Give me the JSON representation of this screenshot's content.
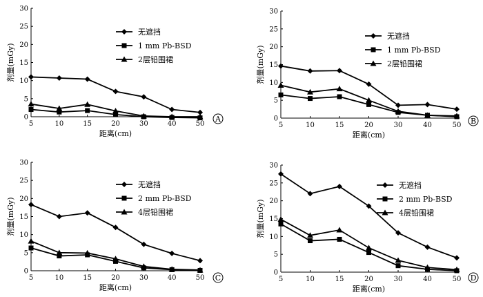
{
  "chart_data": [
    {
      "panel": "A",
      "type": "line",
      "xlabel": "距离(cm)",
      "ylabel": "剂量(mGy)",
      "ylim": [
        0,
        30
      ],
      "x_ticks": [
        "5",
        "10",
        "15",
        "20",
        "30",
        "40",
        "50"
      ],
      "y_ticks": [
        "0",
        "5",
        "10",
        "15",
        "20",
        "25",
        "30"
      ],
      "legend_position": "top-right",
      "series": [
        {
          "name": "无遮挡",
          "marker": "diamond",
          "values": [
            11.0,
            10.7,
            10.4,
            7.0,
            5.5,
            2.0,
            1.2
          ]
        },
        {
          "name": "1 mm Pb-BSD",
          "marker": "square",
          "values": [
            2.0,
            1.3,
            1.7,
            0.6,
            0.0,
            -0.2,
            -0.3
          ]
        },
        {
          "name": "2层铅围裙",
          "marker": "triangle",
          "values": [
            3.5,
            2.3,
            3.4,
            1.6,
            0.2,
            0.0,
            0.0
          ]
        }
      ]
    },
    {
      "panel": "B",
      "type": "line",
      "xlabel": "距离(cm)",
      "ylabel": "剂量(mGy)",
      "ylim": [
        0,
        30
      ],
      "x_ticks": [
        "5",
        "10",
        "15",
        "20",
        "30",
        "40",
        "50"
      ],
      "y_ticks": [
        "0",
        "5",
        "10",
        "15",
        "20",
        "25",
        "30"
      ],
      "legend_position": "top-right",
      "series": [
        {
          "name": "无遮挡",
          "marker": "diamond",
          "values": [
            14.6,
            13.2,
            13.3,
            9.5,
            3.6,
            3.8,
            2.5
          ]
        },
        {
          "name": "1 mm Pb-BSD",
          "marker": "square",
          "values": [
            6.5,
            5.5,
            6.0,
            3.8,
            1.6,
            0.8,
            0.4
          ]
        },
        {
          "name": "2层铅围裙",
          "marker": "triangle",
          "values": [
            9.2,
            7.3,
            8.2,
            5.0,
            1.9,
            0.8,
            0.6
          ]
        }
      ]
    },
    {
      "panel": "C",
      "type": "line",
      "xlabel": "距离(cm)",
      "ylabel": "剂量(mGy)",
      "ylim": [
        0,
        30
      ],
      "x_ticks": [
        "5",
        "10",
        "15",
        "20",
        "30",
        "40",
        "50"
      ],
      "y_ticks": [
        "0",
        "5",
        "10",
        "15",
        "20",
        "25",
        "30"
      ],
      "legend_position": "top-right",
      "series": [
        {
          "name": "无遮挡",
          "marker": "diamond",
          "values": [
            18.3,
            15.0,
            16.0,
            12.0,
            7.3,
            4.8,
            2.8
          ]
        },
        {
          "name": "2 mm Pb-BSD",
          "marker": "square",
          "values": [
            6.3,
            4.1,
            4.4,
            2.6,
            0.8,
            0.3,
            0.1
          ]
        },
        {
          "name": "4层铅围裙",
          "marker": "triangle",
          "values": [
            8.2,
            5.0,
            4.9,
            3.3,
            1.2,
            0.4,
            0.2
          ]
        }
      ]
    },
    {
      "panel": "D",
      "type": "line",
      "xlabel": "距离(cm)",
      "ylabel": "剂量(mGy)",
      "ylim": [
        0,
        30
      ],
      "x_ticks": [
        "5",
        "10",
        "15",
        "20",
        "30",
        "40",
        "50"
      ],
      "y_ticks": [
        "0",
        "5",
        "10",
        "15",
        "20",
        "25",
        "30"
      ],
      "legend_position": "top-right",
      "series": [
        {
          "name": "无遮挡",
          "marker": "diamond",
          "values": [
            27.5,
            22.0,
            24.0,
            18.5,
            11.0,
            7.0,
            4.0
          ]
        },
        {
          "name": "2 mm Pb-BSD",
          "marker": "square",
          "values": [
            13.5,
            8.8,
            9.2,
            5.5,
            1.8,
            0.8,
            0.4
          ]
        },
        {
          "name": "4层铅围裙",
          "marker": "triangle",
          "values": [
            14.8,
            10.3,
            11.8,
            6.8,
            3.3,
            1.3,
            0.7
          ]
        }
      ]
    }
  ]
}
